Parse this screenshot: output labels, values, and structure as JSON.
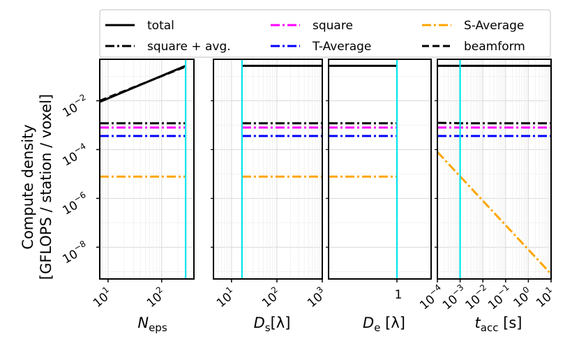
{
  "chart_data": {
    "type": "line",
    "yscale": "log",
    "ylim": [
      5e-10,
      0.5
    ],
    "ylabel_lines": [
      "Compute density",
      "[GFLOPS / station / voxel]"
    ],
    "yticks": [
      {
        "value": 0.01,
        "base": "10",
        "exp": "−2"
      },
      {
        "value": 0.0001,
        "base": "10",
        "exp": "−4"
      },
      {
        "value": 1e-06,
        "base": "10",
        "exp": "−6"
      },
      {
        "value": 1e-08,
        "base": "10",
        "exp": "−8"
      }
    ],
    "legend": {
      "placement": "top",
      "columns": 3,
      "entries": [
        {
          "label": "total",
          "color": "#000000",
          "style": "solid"
        },
        {
          "label": "square + avg.",
          "color": "#000000",
          "style": "dashdot"
        },
        {
          "label": "square",
          "color": "#ff00ff",
          "style": "dashdot"
        },
        {
          "label": "T-Average",
          "color": "#0000ff",
          "style": "dashdot"
        },
        {
          "label": "S-Average",
          "color": "#ffa500",
          "style": "dashdot"
        },
        {
          "label": "beamform",
          "color": "#000000",
          "style": "dashed"
        }
      ]
    },
    "marker_color": "#00e5ee",
    "subplots": [
      {
        "xlabel": {
          "main": "N",
          "sub": "eps",
          "suffix": ""
        },
        "xscale": "log",
        "xlim": [
          7,
          400
        ],
        "xticks": [
          {
            "value": 10,
            "base": "10",
            "exp": "1"
          },
          {
            "value": 100,
            "base": "10",
            "exp": "2"
          }
        ],
        "marker_x": 280,
        "series": [
          {
            "name": "total",
            "x": [
              7,
              280
            ],
            "y": [
              0.009,
              0.27
            ]
          },
          {
            "name": "square + avg.",
            "x": [
              7,
              280
            ],
            "y": [
              0.0012,
              0.0012
            ]
          },
          {
            "name": "square",
            "x": [
              7,
              280
            ],
            "y": [
              0.0008,
              0.0008
            ]
          },
          {
            "name": "T-Average",
            "x": [
              7,
              280
            ],
            "y": [
              0.00036,
              0.00036
            ]
          },
          {
            "name": "S-Average",
            "x": [
              7,
              280
            ],
            "y": [
              7.8e-06,
              7.8e-06
            ]
          },
          {
            "name": "beamform",
            "x": [
              7,
              280
            ],
            "y": [
              0.01,
              0.25
            ]
          }
        ]
      },
      {
        "xlabel": {
          "main": "D",
          "sub": "s",
          "suffix": "[λ]"
        },
        "xscale": "log",
        "xlim": [
          4,
          1000
        ],
        "xticks": [
          {
            "value": 10,
            "base": "10",
            "exp": "1"
          },
          {
            "value": 100,
            "base": "10",
            "exp": "2"
          },
          {
            "value": 1000,
            "base": "10",
            "exp": "3"
          }
        ],
        "marker_x": 17,
        "series": [
          {
            "name": "total",
            "x": [
              17,
              1000
            ],
            "y": [
              0.27,
              0.27
            ]
          },
          {
            "name": "square + avg.",
            "x": [
              17,
              1000
            ],
            "y": [
              0.0012,
              0.0012
            ]
          },
          {
            "name": "square",
            "x": [
              17,
              1000
            ],
            "y": [
              0.0008,
              0.0008
            ]
          },
          {
            "name": "T-Average",
            "x": [
              17,
              1000
            ],
            "y": [
              0.00036,
              0.00036
            ]
          },
          {
            "name": "S-Average",
            "x": [
              17,
              1000
            ],
            "y": [
              7.8e-06,
              7.8e-06
            ]
          }
        ]
      },
      {
        "xlabel": {
          "main": "D",
          "sub": "e",
          "suffix": " [λ]"
        },
        "xscale": "linear",
        "xlim": [
          0,
          1.5
        ],
        "xticks": [
          {
            "value": 1,
            "label": "1"
          }
        ],
        "marker_x": 1,
        "series": [
          {
            "name": "total",
            "x": [
              0,
              1
            ],
            "y": [
              0.27,
              0.27
            ]
          },
          {
            "name": "square + avg.",
            "x": [
              0,
              1
            ],
            "y": [
              0.0012,
              0.0012
            ]
          },
          {
            "name": "square",
            "x": [
              0,
              1
            ],
            "y": [
              0.0008,
              0.0008
            ]
          },
          {
            "name": "T-Average",
            "x": [
              0,
              1
            ],
            "y": [
              0.00036,
              0.00036
            ]
          },
          {
            "name": "S-Average",
            "x": [
              0,
              1
            ],
            "y": [
              7.8e-06,
              7.8e-06
            ]
          }
        ]
      },
      {
        "xlabel": {
          "main": "t",
          "sub": "acc",
          "suffix": " [s]"
        },
        "xscale": "log",
        "xlim": [
          0.0001,
          10
        ],
        "xticks": [
          {
            "value": 0.0001,
            "base": "10",
            "exp": "−4"
          },
          {
            "value": 0.001,
            "base": "10",
            "exp": "−3"
          },
          {
            "value": 0.01,
            "base": "10",
            "exp": "−2"
          },
          {
            "value": 0.1,
            "base": "10",
            "exp": "−1"
          },
          {
            "value": 1,
            "base": "10",
            "exp": "0"
          },
          {
            "value": 10,
            "base": "10",
            "exp": "1"
          }
        ],
        "marker_x": 0.001,
        "series": [
          {
            "name": "total",
            "x": [
              0.0001,
              10
            ],
            "y": [
              0.27,
              0.27
            ]
          },
          {
            "name": "square + avg.",
            "x": [
              0.0001,
              0.001,
              10
            ],
            "y": [
              0.00125,
              0.0012,
              0.0012
            ]
          },
          {
            "name": "square",
            "x": [
              0.0001,
              10
            ],
            "y": [
              0.0008,
              0.0008
            ]
          },
          {
            "name": "T-Average",
            "x": [
              0.0001,
              10
            ],
            "y": [
              0.00036,
              0.00036
            ]
          },
          {
            "name": "S-Average",
            "x": [
              0.0001,
              10
            ],
            "y": [
              8e-05,
              8e-10
            ]
          }
        ]
      }
    ]
  }
}
